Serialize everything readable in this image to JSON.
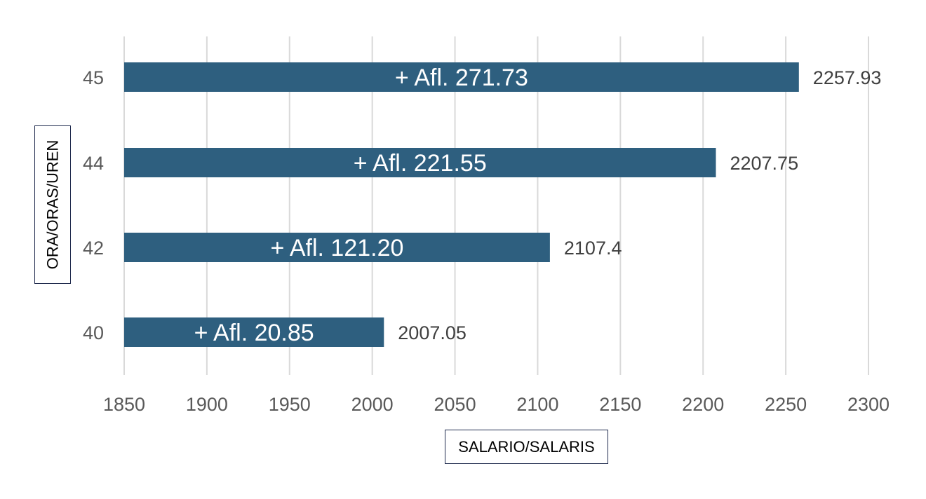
{
  "chart_data": {
    "type": "bar",
    "orientation": "horizontal",
    "categories": [
      "45",
      "44",
      "42",
      "40"
    ],
    "values": [
      2257.93,
      2207.75,
      2107.4,
      2007.05
    ],
    "value_labels": [
      "2257.93",
      "2207.75",
      "2107.4",
      "2007.05"
    ],
    "inner_labels": [
      "+ Afl. 271.73",
      "+ Afl. 221.55",
      "+ Afl. 121.20",
      "+ Afl. 20.85"
    ],
    "xlabel": "SALARIO/SALARIS",
    "ylabel": "ORA/ORAS/UREN",
    "xlim": [
      1850,
      2300
    ],
    "xticks": [
      "1850",
      "1900",
      "1950",
      "2000",
      "2050",
      "2100",
      "2150",
      "2200",
      "2250",
      "2300"
    ],
    "grid": "vertical",
    "bar_color": "#2e5f7f",
    "gridline_color": "#d9d9d9"
  }
}
